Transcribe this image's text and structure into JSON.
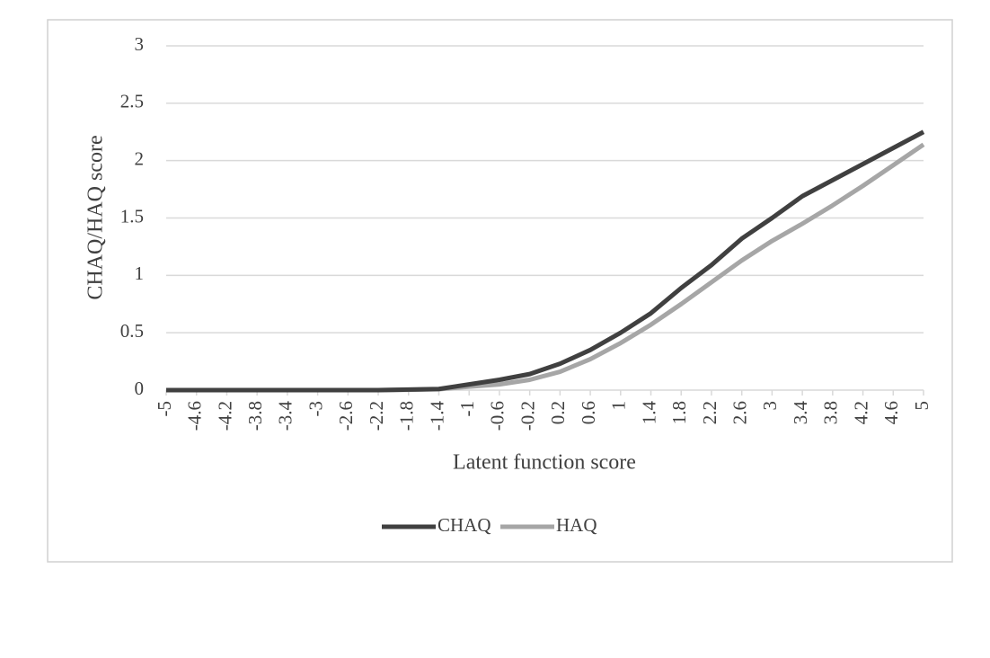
{
  "chart_data": {
    "type": "line",
    "x_label": "Latent function score",
    "y_label": "CHAQ/HAQ score",
    "x": [
      -5,
      -4.6,
      -4.2,
      -3.8,
      -3.4,
      -3,
      -2.6,
      -2.2,
      -1.8,
      -1.4,
      -1,
      -0.6,
      -0.2,
      0.2,
      0.6,
      1,
      1.4,
      1.8,
      2.2,
      2.6,
      3,
      3.4,
      3.8,
      4.2,
      4.6,
      5
    ],
    "series": [
      {
        "name": "CHAQ",
        "color": "#404040",
        "values": [
          0,
          0,
          0,
          0,
          0,
          0,
          0,
          0,
          0.005,
          0.01,
          0.05,
          0.09,
          0.14,
          0.23,
          0.35,
          0.5,
          0.67,
          0.89,
          1.09,
          1.32,
          1.5,
          1.69,
          1.83,
          1.97,
          2.11,
          2.25
        ]
      },
      {
        "name": "HAQ",
        "color": "#a6a6a6",
        "values": [
          0,
          0,
          0,
          0,
          0,
          0,
          0,
          0,
          0.003,
          0.008,
          0.03,
          0.05,
          0.09,
          0.16,
          0.27,
          0.41,
          0.57,
          0.75,
          0.94,
          1.13,
          1.3,
          1.45,
          1.61,
          1.78,
          1.96,
          2.14
        ]
      }
    ],
    "xlim": [
      -5,
      5
    ],
    "xticks": [
      -5,
      -4.6,
      -4.2,
      -3.8,
      -3.4,
      -3,
      -2.6,
      -2.2,
      -1.8,
      -1.4,
      -1,
      -0.6,
      -0.2,
      0.2,
      0.6,
      1,
      1.4,
      1.8,
      2.2,
      2.6,
      3,
      3.4,
      3.8,
      4.2,
      4.6,
      5
    ],
    "ylim": [
      0,
      3
    ],
    "yticks": [
      0,
      0.5,
      1,
      1.5,
      2,
      2.5,
      3
    ],
    "grid": true,
    "legend": "bottom"
  }
}
